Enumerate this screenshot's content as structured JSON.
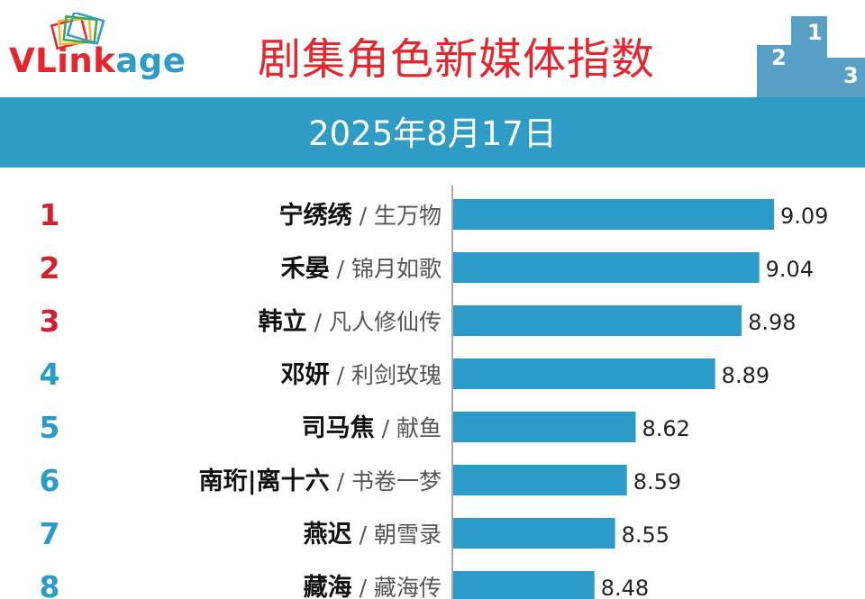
{
  "logo": {
    "name_part1": "VLink",
    "name_part2": "age",
    "name_part1_color": "#e8242d",
    "name_part2_color": "#2f9cc5"
  },
  "title": "剧集角色新媒体指数",
  "date": "2025年8月17日",
  "podium": {
    "labels": [
      "2",
      "1",
      "3"
    ],
    "color": "#3c8fbd"
  },
  "colors": {
    "bar": "#2b9bc9",
    "rank_top": "#d1202f",
    "rank_other": "#2b9bc9",
    "band": "#2f9cc5"
  },
  "chart_data": {
    "type": "bar",
    "orientation": "horizontal",
    "title": "剧集角色新媒体指数",
    "subtitle": "2025年8月17日",
    "xlim": [
      8.0,
      9.1
    ],
    "categories": [
      {
        "rank": "1",
        "character": "宁绣绣",
        "drama": "生万物"
      },
      {
        "rank": "2",
        "character": "禾晏",
        "drama": "锦月如歌"
      },
      {
        "rank": "3",
        "character": "韩立",
        "drama": "凡人修仙传"
      },
      {
        "rank": "4",
        "character": "邓妍",
        "drama": "利剑玫瑰"
      },
      {
        "rank": "5",
        "character": "司马焦",
        "drama": "献鱼"
      },
      {
        "rank": "6",
        "character": "南珩|离十六",
        "drama": "书卷一梦"
      },
      {
        "rank": "7",
        "character": "燕迟",
        "drama": "朝雪录"
      },
      {
        "rank": "8",
        "character": "藏海",
        "drama": "藏海传"
      }
    ],
    "values": [
      9.09,
      9.04,
      8.98,
      8.89,
      8.62,
      8.59,
      8.55,
      8.48
    ],
    "value_labels": [
      "9.09",
      "9.04",
      "8.98",
      "8.89",
      "8.62",
      "8.59",
      "8.55",
      "8.48"
    ],
    "separator": " / "
  }
}
